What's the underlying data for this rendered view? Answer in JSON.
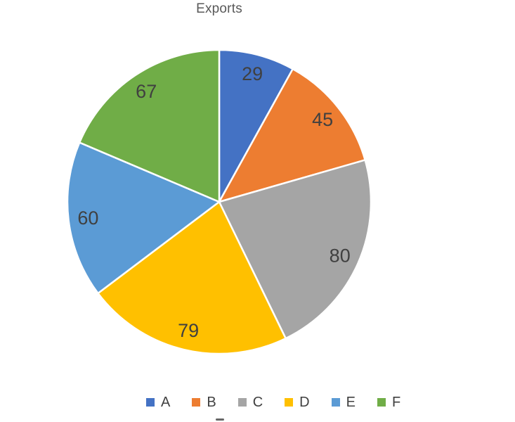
{
  "chart_data": {
    "type": "pie",
    "title": "Exports",
    "categories": [
      "A",
      "B",
      "C",
      "D",
      "E",
      "F"
    ],
    "values": [
      29,
      45,
      80,
      79,
      60,
      67
    ],
    "colors": [
      "#4472C4",
      "#ED7D31",
      "#A5A5A5",
      "#FFC000",
      "#5B9BD5",
      "#70AD47"
    ],
    "total": 360,
    "start_angle_deg": 0,
    "direction": "clockwise",
    "data_labels": [
      "29",
      "45",
      "80",
      "79",
      "60",
      "67"
    ],
    "label_color": "#404040",
    "title_color": "#595959",
    "slice_border_color": "#FFFFFF",
    "legend": {
      "position": "bottom",
      "entries": [
        "A",
        "B",
        "C",
        "D",
        "E",
        "F"
      ]
    }
  }
}
